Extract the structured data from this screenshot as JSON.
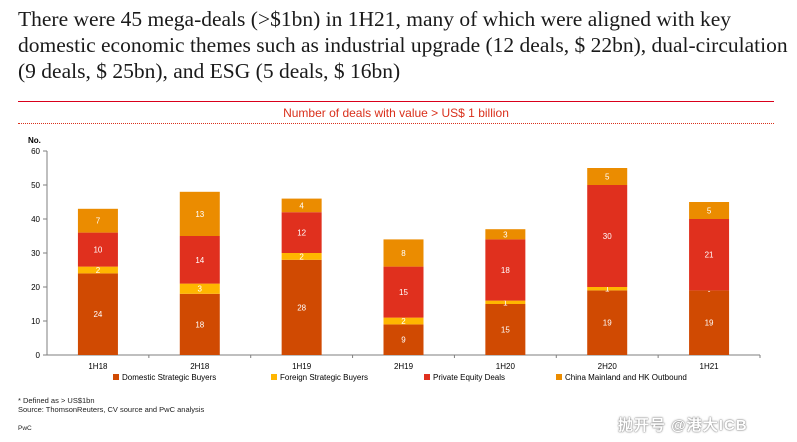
{
  "headline": "There were 45 mega-deals (>$1bn) in 1H21, many of which were aligned with key domestic economic themes such as industrial upgrade (12 deals, $ 22bn), dual-circulation (9 deals, $ 25bn), and ESG (5 deals, $ 16bn)",
  "chart_data": {
    "type": "bar",
    "stacked": true,
    "title": "Number of deals with value > US$ 1 billion",
    "ylabel": "No.",
    "ylim": [
      0,
      60
    ],
    "yticks": [
      0,
      10,
      20,
      30,
      40,
      50,
      60
    ],
    "categories": [
      "1H18",
      "2H18",
      "1H19",
      "2H19",
      "1H20",
      "2H20",
      "1H21"
    ],
    "series": [
      {
        "name": "Domestic Strategic Buyers",
        "color": "#d04a02",
        "values": [
          24,
          18,
          28,
          9,
          15,
          19,
          19
        ],
        "labels": [
          "24",
          "18",
          "28",
          "9",
          "15",
          "19",
          "19"
        ]
      },
      {
        "name": "Foreign Strategic Buyers",
        "color": "#ffb600",
        "values": [
          2,
          3,
          2,
          2,
          1,
          1,
          0
        ],
        "labels": [
          "2",
          "3",
          "2",
          "2",
          "1",
          "1",
          "-"
        ]
      },
      {
        "name": "Private Equity Deals",
        "color": "#e0301e",
        "values": [
          10,
          14,
          12,
          15,
          18,
          30,
          21
        ],
        "labels": [
          "10",
          "14",
          "12",
          "15",
          "18",
          "30",
          "21"
        ]
      },
      {
        "name": "China Mainland and HK Outbound",
        "color": "#eb8c00",
        "values": [
          7,
          13,
          4,
          8,
          3,
          5,
          5
        ],
        "labels": [
          "7",
          "13",
          "4",
          "8",
          "3",
          "5",
          "5"
        ]
      }
    ],
    "grid": false,
    "legend_position": "bottom"
  },
  "footnotes": {
    "defined": "* Defined as > US$1bn",
    "source": "Source: ThomsonReuters, CV source and PwC analysis",
    "brand": "PwC"
  },
  "watermark": "抛开号 @港大ICB"
}
